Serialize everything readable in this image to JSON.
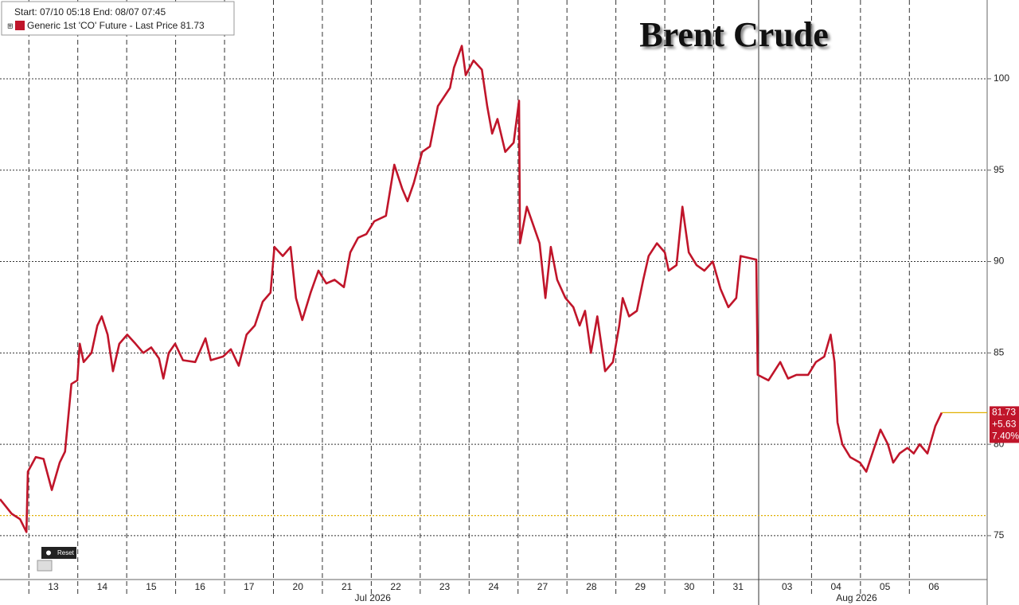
{
  "chart_data": {
    "type": "line",
    "title": "Brent Crude",
    "header": "Start: 07/10 05:18 End: 08/07 07:45",
    "xlim": [
      -1.09,
      19.09
    ],
    "ylim": [
      72.6,
      104.31
    ],
    "yticks": [
      75,
      80,
      85,
      90,
      95,
      100
    ],
    "xticks": [
      {
        "value": 0,
        "label": "13"
      },
      {
        "value": 1,
        "label": "14"
      },
      {
        "value": 2,
        "label": "15"
      },
      {
        "value": 3,
        "label": "16"
      },
      {
        "value": 4,
        "label": "17"
      },
      {
        "value": 5,
        "label": "20"
      },
      {
        "value": 6,
        "label": "21"
      },
      {
        "value": 7,
        "label": "22"
      },
      {
        "value": 8,
        "label": "23"
      },
      {
        "value": 9,
        "label": "24"
      },
      {
        "value": 10,
        "label": "27"
      },
      {
        "value": 11,
        "label": "28"
      },
      {
        "value": 12,
        "label": "29"
      },
      {
        "value": 13,
        "label": "30"
      },
      {
        "value": 14,
        "label": "31"
      },
      {
        "value": 15,
        "label": "03"
      },
      {
        "value": 16,
        "label": "04"
      },
      {
        "value": 17,
        "label": "05"
      },
      {
        "value": 18,
        "label": "06"
      }
    ],
    "months": [
      {
        "value": 6.53,
        "label": "Jul 2026"
      },
      {
        "value": 16.42,
        "label": "Aug 2026"
      }
    ],
    "grid": true,
    "reference_line": 76.1,
    "last_value": 81.73,
    "last_value_labels": [
      "81.73",
      "+5.63",
      "7.40%"
    ],
    "reset_label": "Reset",
    "series": [
      {
        "name": "Generic 1st 'CO' Future - Last Price 81.73",
        "color": "#c0152a",
        "x": [
          -1.09,
          -0.85,
          -0.68,
          -0.55,
          -0.52,
          -0.36,
          -0.2,
          -0.03,
          0.13,
          0.24,
          0.37,
          0.49,
          0.54,
          0.62,
          0.78,
          0.9,
          0.99,
          1.11,
          1.22,
          1.35,
          1.51,
          1.68,
          1.84,
          2.0,
          2.16,
          2.25,
          2.36,
          2.49,
          2.65,
          2.9,
          3.11,
          3.22,
          3.47,
          3.63,
          3.79,
          3.95,
          4.12,
          4.28,
          4.44,
          4.52,
          4.69,
          4.85,
          4.96,
          5.09,
          5.26,
          5.42,
          5.58,
          5.75,
          5.94,
          6.07,
          6.23,
          6.4,
          6.56,
          6.8,
          6.97,
          7.13,
          7.24,
          7.37,
          7.54,
          7.7,
          7.86,
          8.11,
          8.19,
          8.35,
          8.43,
          8.59,
          8.76,
          8.87,
          8.97,
          9.08,
          9.24,
          9.41,
          9.52,
          9.54,
          9.68,
          9.81,
          9.94,
          10.06,
          10.17,
          10.3,
          10.47,
          10.63,
          10.76,
          10.87,
          10.99,
          11.12,
          11.28,
          11.44,
          11.57,
          11.64,
          11.77,
          11.93,
          12.06,
          12.17,
          12.34,
          12.5,
          12.58,
          12.74,
          12.86,
          12.99,
          13.15,
          13.31,
          13.48,
          13.64,
          13.8,
          13.96,
          14.05,
          14.21,
          14.37,
          14.4,
          14.62,
          14.86,
          15.02,
          15.19,
          15.43,
          15.59,
          15.76,
          15.89,
          15.97,
          16.03,
          16.13,
          16.29,
          16.49,
          16.62,
          16.78,
          16.91,
          17.06,
          17.17,
          17.3,
          17.46,
          17.59,
          17.71,
          17.87,
          18.03,
          18.16
        ],
        "values": [
          77.0,
          76.2,
          75.9,
          75.2,
          78.5,
          79.3,
          79.2,
          77.5,
          79.0,
          79.6,
          83.3,
          83.5,
          85.5,
          84.5,
          85.0,
          86.5,
          87.0,
          86.0,
          84.0,
          85.5,
          86.0,
          85.5,
          85.0,
          85.3,
          84.7,
          83.6,
          85.0,
          85.5,
          84.6,
          84.5,
          85.8,
          84.6,
          84.8,
          85.2,
          84.3,
          86.0,
          86.5,
          87.8,
          88.3,
          90.8,
          90.3,
          90.8,
          88.0,
          86.8,
          88.3,
          89.5,
          88.8,
          89.0,
          88.6,
          90.5,
          91.3,
          91.5,
          92.2,
          92.5,
          95.3,
          94.0,
          93.3,
          94.3,
          96.0,
          96.3,
          98.5,
          99.5,
          100.6,
          101.8,
          100.2,
          101.0,
          100.5,
          98.5,
          97.0,
          97.8,
          96.0,
          96.5,
          98.8,
          91.0,
          93.0,
          92.0,
          91.0,
          88.0,
          90.8,
          89.0,
          88.0,
          87.5,
          86.5,
          87.3,
          85.0,
          87.0,
          84.0,
          84.5,
          86.5,
          88.0,
          87.0,
          87.3,
          89.0,
          90.3,
          91.0,
          90.5,
          89.5,
          89.8,
          93.0,
          90.5,
          89.8,
          89.5,
          90.0,
          88.5,
          87.5,
          88.0,
          90.3,
          90.2,
          90.1,
          83.8,
          83.5,
          84.5,
          83.6,
          83.8,
          83.8,
          84.5,
          84.8,
          86.0,
          84.5,
          81.2,
          80.0,
          79.3,
          79.0,
          78.5,
          79.8,
          80.8,
          80.0,
          79.0,
          79.5,
          79.8,
          79.5,
          80.0,
          79.5,
          81.0,
          81.73
        ]
      }
    ]
  }
}
